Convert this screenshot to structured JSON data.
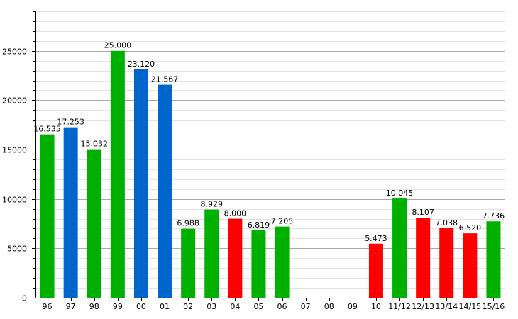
{
  "chart_data": {
    "type": "bar",
    "categories": [
      "96",
      "97",
      "98",
      "99",
      "00",
      "01",
      "02",
      "03",
      "04",
      "05",
      "06",
      "07",
      "08",
      "09",
      "10",
      "11/12",
      "12/13",
      "13/14",
      "14/15",
      "15/16"
    ],
    "values": [
      16535,
      17253,
      15032,
      25000,
      23120,
      21567,
      6988,
      8929,
      8000,
      6819,
      7205,
      null,
      null,
      null,
      5473,
      10045,
      8107,
      7038,
      6520,
      7736
    ],
    "value_labels": [
      "16.535",
      "17.253",
      "15.032",
      "25.000",
      "23.120",
      "21.567",
      "6.988",
      "8.929",
      "8.000",
      "6.819",
      "7.205",
      "",
      "",
      "",
      "5.473",
      "10.045",
      "8.107",
      "7.038",
      "6.520",
      "7.736"
    ],
    "bar_colors": [
      "#00b000",
      "#0066cc",
      "#00b000",
      "#00b000",
      "#0066cc",
      "#0066cc",
      "#00b000",
      "#00b000",
      "#ff0000",
      "#00b000",
      "#00b000",
      null,
      null,
      null,
      "#ff0000",
      "#00b000",
      "#ff0000",
      "#ff0000",
      "#ff0000",
      "#00b000"
    ],
    "ylim": [
      0,
      29000
    ],
    "yticks": [
      0,
      5000,
      10000,
      15000,
      20000,
      25000
    ],
    "ytick_labels": [
      "0",
      "5000",
      "10000",
      "15000",
      "20000",
      "25000"
    ],
    "minor_step": 1000,
    "grid": true,
    "title": "",
    "xlabel": "",
    "ylabel": ""
  }
}
